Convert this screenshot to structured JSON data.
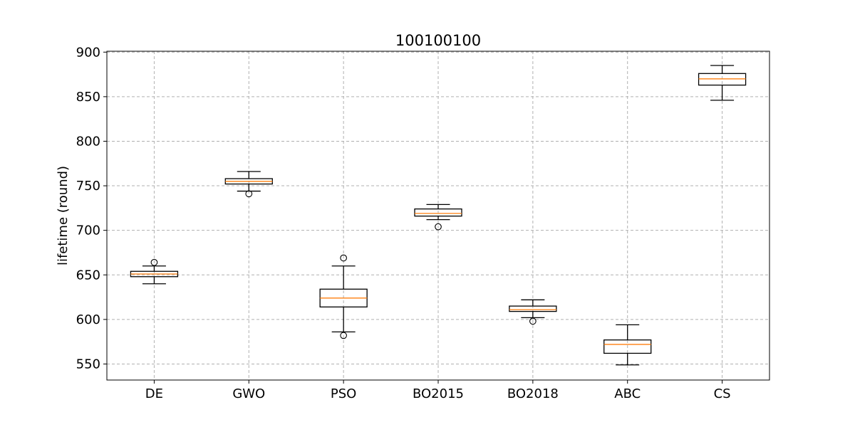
{
  "chart_data": {
    "type": "boxplot",
    "title": "100100100",
    "xlabel": "",
    "ylabel": "lifetime (round)",
    "ylim": [
      532,
      901
    ],
    "yticks": [
      550,
      600,
      650,
      700,
      750,
      800,
      850,
      900
    ],
    "grid": true,
    "categories": [
      "DE",
      "GWO",
      "PSO",
      "BO2015",
      "BO2018",
      "ABC",
      "CS"
    ],
    "boxes": [
      {
        "whisker_low": 640,
        "q1": 648,
        "median": 651,
        "q3": 654,
        "whisker_high": 660,
        "outliers": [
          664
        ]
      },
      {
        "whisker_low": 744,
        "q1": 752,
        "median": 755,
        "q3": 758,
        "whisker_high": 766,
        "outliers": [
          741
        ]
      },
      {
        "whisker_low": 586,
        "q1": 614,
        "median": 624,
        "q3": 634,
        "whisker_high": 660,
        "outliers": [
          669,
          582
        ]
      },
      {
        "whisker_low": 712,
        "q1": 716,
        "median": 719,
        "q3": 724,
        "whisker_high": 729,
        "outliers": [
          704
        ]
      },
      {
        "whisker_low": 602,
        "q1": 609,
        "median": 611,
        "q3": 615,
        "whisker_high": 622,
        "outliers": [
          598
        ]
      },
      {
        "whisker_low": 549,
        "q1": 562,
        "median": 572,
        "q3": 577,
        "whisker_high": 594,
        "outliers": []
      },
      {
        "whisker_low": 846,
        "q1": 863,
        "median": 870,
        "q3": 876,
        "whisker_high": 885,
        "outliers": []
      }
    ],
    "colors": {
      "box": "#000000",
      "median": "#ff7f0e",
      "grid": "#b0b0b0"
    }
  }
}
